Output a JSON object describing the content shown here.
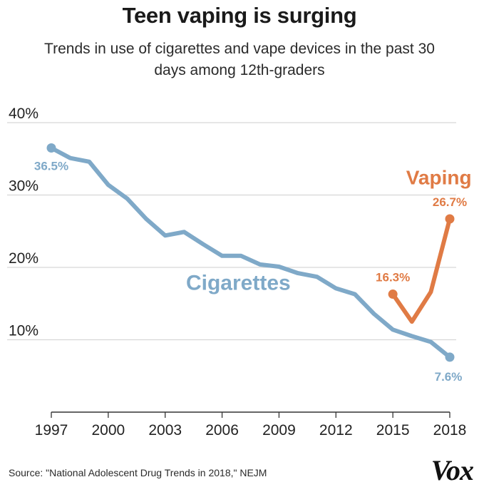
{
  "title": "Teen vaping is surging",
  "subtitle": "Trends in use of cigarettes and vape devices in the past 30 days among 12th-graders",
  "source": "Source: \"National Adolescent Drug Trends in 2018,\" NEJM",
  "brand": "Vox",
  "colors": {
    "cigarettes": "#7fa9c8",
    "vaping": "#e07b45",
    "grid": "#d6d6d6",
    "axis": "#333333"
  },
  "chart_data": {
    "type": "line",
    "ylim": [
      0,
      40
    ],
    "xlim": [
      1997,
      2018
    ],
    "y_ticks": [
      {
        "value": 10,
        "label": "10%"
      },
      {
        "value": 20,
        "label": "20%"
      },
      {
        "value": 30,
        "label": "30%"
      },
      {
        "value": 40,
        "label": "40%"
      }
    ],
    "x_ticks": [
      {
        "value": 1997,
        "label": "1997"
      },
      {
        "value": 2000,
        "label": "2000"
      },
      {
        "value": 2003,
        "label": "2003"
      },
      {
        "value": 2006,
        "label": "2006"
      },
      {
        "value": 2009,
        "label": "2009"
      },
      {
        "value": 2012,
        "label": "2012"
      },
      {
        "value": 2015,
        "label": "2015"
      },
      {
        "value": 2018,
        "label": "2018"
      }
    ],
    "grid": true,
    "series": [
      {
        "name": "Cigarettes",
        "color": "#7fa9c8",
        "x": [
          1997,
          1998,
          1999,
          2000,
          2001,
          2002,
          2003,
          2004,
          2005,
          2006,
          2007,
          2008,
          2009,
          2010,
          2011,
          2012,
          2013,
          2014,
          2015,
          2016,
          2017,
          2018
        ],
        "y": [
          36.5,
          35.1,
          34.6,
          31.4,
          29.5,
          26.7,
          24.4,
          24.9,
          23.2,
          21.6,
          21.6,
          20.4,
          20.1,
          19.2,
          18.7,
          17.1,
          16.3,
          13.6,
          11.4,
          10.5,
          9.7,
          7.6
        ]
      },
      {
        "name": "Vaping",
        "color": "#e07b45",
        "x": [
          2015,
          2016,
          2017,
          2018
        ],
        "y": [
          16.3,
          12.5,
          16.6,
          26.7
        ]
      }
    ],
    "annotations": [
      {
        "series": 0,
        "point": 0,
        "text": "36.5%"
      },
      {
        "series": 0,
        "point": 21,
        "text": "7.6%"
      },
      {
        "series": 1,
        "point": 0,
        "text": "16.3%"
      },
      {
        "series": 1,
        "point": 3,
        "text": "26.7%"
      }
    ]
  }
}
